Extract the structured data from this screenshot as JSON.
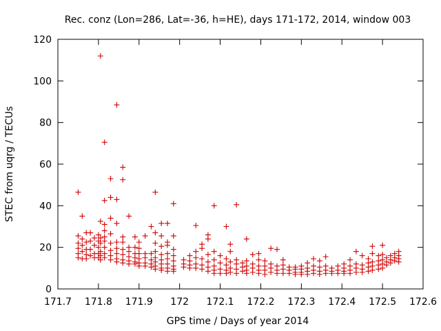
{
  "chart_data": {
    "type": "scatter",
    "title": "Rec. conz (Lon=286, Lat=-36, h=HE), days 171-172, 2014, window 003",
    "xlabel": "GPS time / Days of year 2014",
    "ylabel": "STEC from uqrg / TECUs",
    "xlim": [
      171.7,
      172.6
    ],
    "ylim": [
      0,
      120
    ],
    "xticks": [
      "171.7",
      "171.8",
      "171.9",
      "172",
      "172.1",
      "172.2",
      "172.3",
      "172.4",
      "172.5",
      "172.6"
    ],
    "yticks": [
      "0",
      "20",
      "40",
      "60",
      "80",
      "100",
      "120"
    ],
    "grid": false,
    "marker": "+",
    "color": "#cc0000",
    "points": [
      [
        171.75,
        46.5
      ],
      [
        171.75,
        25.5
      ],
      [
        171.75,
        22
      ],
      [
        171.75,
        19.5
      ],
      [
        171.75,
        17
      ],
      [
        171.75,
        15
      ],
      [
        171.76,
        35
      ],
      [
        171.76,
        24
      ],
      [
        171.76,
        21
      ],
      [
        171.76,
        18
      ],
      [
        171.76,
        14.5
      ],
      [
        171.77,
        27
      ],
      [
        171.77,
        22.5
      ],
      [
        171.77,
        19
      ],
      [
        171.77,
        16.5
      ],
      [
        171.77,
        14.5
      ],
      [
        171.78,
        27
      ],
      [
        171.78,
        23
      ],
      [
        171.78,
        19
      ],
      [
        171.78,
        16
      ],
      [
        171.79,
        24.5
      ],
      [
        171.79,
        21
      ],
      [
        171.79,
        17
      ],
      [
        171.79,
        15
      ],
      [
        171.8,
        26
      ],
      [
        171.8,
        23
      ],
      [
        171.8,
        20
      ],
      [
        171.8,
        17
      ],
      [
        171.8,
        15
      ],
      [
        171.805,
        112
      ],
      [
        171.805,
        32.5
      ],
      [
        171.805,
        24.5
      ],
      [
        171.805,
        22
      ],
      [
        171.805,
        18
      ],
      [
        171.805,
        16
      ],
      [
        171.805,
        14
      ],
      [
        171.815,
        70.5
      ],
      [
        171.815,
        42.5
      ],
      [
        171.815,
        31
      ],
      [
        171.815,
        28
      ],
      [
        171.815,
        25
      ],
      [
        171.815,
        23
      ],
      [
        171.815,
        20
      ],
      [
        171.815,
        17
      ],
      [
        171.815,
        15
      ],
      [
        171.83,
        53
      ],
      [
        171.83,
        44
      ],
      [
        171.83,
        34
      ],
      [
        171.83,
        26.5
      ],
      [
        171.83,
        22
      ],
      [
        171.83,
        18.5
      ],
      [
        171.83,
        16
      ],
      [
        171.83,
        14
      ],
      [
        171.845,
        88.5
      ],
      [
        171.845,
        43
      ],
      [
        171.845,
        31.5
      ],
      [
        171.845,
        22.5
      ],
      [
        171.845,
        19.5
      ],
      [
        171.845,
        17
      ],
      [
        171.845,
        14.5
      ],
      [
        171.845,
        13
      ],
      [
        171.86,
        58.5
      ],
      [
        171.86,
        52.5
      ],
      [
        171.86,
        25
      ],
      [
        171.86,
        22.5
      ],
      [
        171.86,
        19
      ],
      [
        171.86,
        16.5
      ],
      [
        171.86,
        14
      ],
      [
        171.86,
        12.5
      ],
      [
        171.875,
        35
      ],
      [
        171.875,
        20
      ],
      [
        171.875,
        18
      ],
      [
        171.875,
        15.5
      ],
      [
        171.875,
        13.5
      ],
      [
        171.875,
        12
      ],
      [
        171.89,
        25
      ],
      [
        171.89,
        20
      ],
      [
        171.89,
        17
      ],
      [
        171.89,
        15
      ],
      [
        171.89,
        13
      ],
      [
        171.89,
        12
      ],
      [
        171.9,
        22.5
      ],
      [
        171.9,
        19.5
      ],
      [
        171.9,
        17
      ],
      [
        171.9,
        14.5
      ],
      [
        171.9,
        12.5
      ],
      [
        171.9,
        11
      ],
      [
        171.915,
        25.5
      ],
      [
        171.915,
        17
      ],
      [
        171.915,
        15
      ],
      [
        171.915,
        12.5
      ],
      [
        171.915,
        11
      ],
      [
        171.93,
        30
      ],
      [
        171.93,
        17
      ],
      [
        171.93,
        14
      ],
      [
        171.93,
        12
      ],
      [
        171.93,
        10.5
      ],
      [
        171.94,
        46.5
      ],
      [
        171.94,
        27
      ],
      [
        171.94,
        22
      ],
      [
        171.94,
        18
      ],
      [
        171.94,
        15
      ],
      [
        171.94,
        13
      ],
      [
        171.94,
        11
      ],
      [
        171.94,
        9.5
      ],
      [
        171.955,
        31.5
      ],
      [
        171.955,
        25.5
      ],
      [
        171.955,
        20.5
      ],
      [
        171.955,
        16.5
      ],
      [
        171.955,
        14
      ],
      [
        171.955,
        12
      ],
      [
        171.955,
        10
      ],
      [
        171.955,
        9
      ],
      [
        171.97,
        31.5
      ],
      [
        171.97,
        22.5
      ],
      [
        171.97,
        21
      ],
      [
        171.97,
        17
      ],
      [
        171.97,
        14.5
      ],
      [
        171.97,
        12
      ],
      [
        171.97,
        10
      ],
      [
        171.97,
        8.5
      ],
      [
        171.985,
        41
      ],
      [
        171.985,
        25.5
      ],
      [
        171.985,
        19
      ],
      [
        171.985,
        16
      ],
      [
        171.985,
        13.5
      ],
      [
        171.985,
        11
      ],
      [
        171.985,
        9.5
      ],
      [
        171.985,
        8.5
      ],
      [
        172.01,
        14
      ],
      [
        172.01,
        12
      ],
      [
        172.01,
        10.5
      ],
      [
        172.025,
        16
      ],
      [
        172.025,
        13.5
      ],
      [
        172.025,
        11.5
      ],
      [
        172.025,
        10
      ],
      [
        172.04,
        30.5
      ],
      [
        172.04,
        18
      ],
      [
        172.04,
        15
      ],
      [
        172.04,
        12
      ],
      [
        172.04,
        10
      ],
      [
        172.055,
        21.5
      ],
      [
        172.055,
        19.5
      ],
      [
        172.055,
        14.5
      ],
      [
        172.055,
        11.5
      ],
      [
        172.055,
        9.5
      ],
      [
        172.07,
        26
      ],
      [
        172.07,
        24
      ],
      [
        172.07,
        16.5
      ],
      [
        172.07,
        13
      ],
      [
        172.07,
        10.5
      ],
      [
        172.07,
        8.5
      ],
      [
        172.085,
        40
      ],
      [
        172.085,
        18
      ],
      [
        172.085,
        14
      ],
      [
        172.085,
        11
      ],
      [
        172.085,
        9
      ],
      [
        172.085,
        7.5
      ],
      [
        172.1,
        16
      ],
      [
        172.1,
        12.5
      ],
      [
        172.1,
        9.5
      ],
      [
        172.1,
        7.5
      ],
      [
        172.115,
        30
      ],
      [
        172.115,
        14.5
      ],
      [
        172.115,
        11.5
      ],
      [
        172.115,
        9
      ],
      [
        172.115,
        7.5
      ],
      [
        172.125,
        21.5
      ],
      [
        172.125,
        18
      ],
      [
        172.125,
        13
      ],
      [
        172.125,
        10
      ],
      [
        172.125,
        8
      ],
      [
        172.14,
        40.5
      ],
      [
        172.14,
        14
      ],
      [
        172.14,
        12
      ],
      [
        172.14,
        9.5
      ],
      [
        172.14,
        7.5
      ],
      [
        172.155,
        12.5
      ],
      [
        172.155,
        10.5
      ],
      [
        172.155,
        8.5
      ],
      [
        172.165,
        24
      ],
      [
        172.165,
        13.5
      ],
      [
        172.165,
        11
      ],
      [
        172.165,
        9
      ],
      [
        172.165,
        7.5
      ],
      [
        172.18,
        16.5
      ],
      [
        172.18,
        12
      ],
      [
        172.18,
        10
      ],
      [
        172.18,
        8
      ],
      [
        172.195,
        17
      ],
      [
        172.195,
        14
      ],
      [
        172.195,
        11
      ],
      [
        172.195,
        9
      ],
      [
        172.195,
        7.5
      ],
      [
        172.21,
        13.5
      ],
      [
        172.21,
        11
      ],
      [
        172.21,
        9
      ],
      [
        172.21,
        7
      ],
      [
        172.225,
        19.5
      ],
      [
        172.225,
        12
      ],
      [
        172.225,
        10
      ],
      [
        172.225,
        8
      ],
      [
        172.24,
        19
      ],
      [
        172.24,
        11
      ],
      [
        172.24,
        9
      ],
      [
        172.24,
        7.5
      ],
      [
        172.255,
        14
      ],
      [
        172.255,
        11.5
      ],
      [
        172.255,
        9.5
      ],
      [
        172.255,
        7.5
      ],
      [
        172.27,
        10.5
      ],
      [
        172.27,
        9
      ],
      [
        172.27,
        7.5
      ],
      [
        172.285,
        10.5
      ],
      [
        172.285,
        9.5
      ],
      [
        172.285,
        8
      ],
      [
        172.285,
        7
      ],
      [
        172.3,
        11
      ],
      [
        172.3,
        9.5
      ],
      [
        172.3,
        8
      ],
      [
        172.3,
        7
      ],
      [
        172.315,
        12.5
      ],
      [
        172.315,
        10
      ],
      [
        172.315,
        8.5
      ],
      [
        172.315,
        7
      ],
      [
        172.33,
        14.5
      ],
      [
        172.33,
        11
      ],
      [
        172.33,
        9
      ],
      [
        172.33,
        7.5
      ],
      [
        172.345,
        13.5
      ],
      [
        172.345,
        10.5
      ],
      [
        172.345,
        8.5
      ],
      [
        172.345,
        7
      ],
      [
        172.36,
        15.5
      ],
      [
        172.36,
        11
      ],
      [
        172.36,
        9
      ],
      [
        172.36,
        7.5
      ],
      [
        172.375,
        10
      ],
      [
        172.375,
        8.5
      ],
      [
        172.375,
        7.5
      ],
      [
        172.39,
        11
      ],
      [
        172.39,
        9
      ],
      [
        172.39,
        7.5
      ],
      [
        172.405,
        12
      ],
      [
        172.405,
        10
      ],
      [
        172.405,
        8.5
      ],
      [
        172.405,
        7.5
      ],
      [
        172.42,
        14
      ],
      [
        172.42,
        11
      ],
      [
        172.42,
        9
      ],
      [
        172.42,
        7.5
      ],
      [
        172.435,
        18
      ],
      [
        172.435,
        12
      ],
      [
        172.435,
        10
      ],
      [
        172.435,
        8
      ],
      [
        172.45,
        16
      ],
      [
        172.45,
        11.5
      ],
      [
        172.45,
        9.5
      ],
      [
        172.45,
        8
      ],
      [
        172.465,
        14.5
      ],
      [
        172.465,
        12.5
      ],
      [
        172.465,
        10.5
      ],
      [
        172.465,
        8.5
      ],
      [
        172.475,
        20.5
      ],
      [
        172.475,
        17
      ],
      [
        172.475,
        13
      ],
      [
        172.475,
        11
      ],
      [
        172.475,
        9
      ],
      [
        172.49,
        16
      ],
      [
        172.49,
        13.5
      ],
      [
        172.49,
        11.5
      ],
      [
        172.49,
        9.5
      ],
      [
        172.5,
        21
      ],
      [
        172.5,
        16.5
      ],
      [
        172.5,
        14
      ],
      [
        172.5,
        12
      ],
      [
        172.5,
        10
      ],
      [
        172.51,
        15
      ],
      [
        172.51,
        13
      ],
      [
        172.51,
        11.5
      ],
      [
        172.52,
        16
      ],
      [
        172.52,
        14
      ],
      [
        172.52,
        12.5
      ],
      [
        172.53,
        17
      ],
      [
        172.53,
        15
      ],
      [
        172.53,
        13.5
      ],
      [
        172.54,
        18
      ],
      [
        172.54,
        16
      ],
      [
        172.54,
        14.5
      ],
      [
        172.54,
        13
      ]
    ]
  }
}
